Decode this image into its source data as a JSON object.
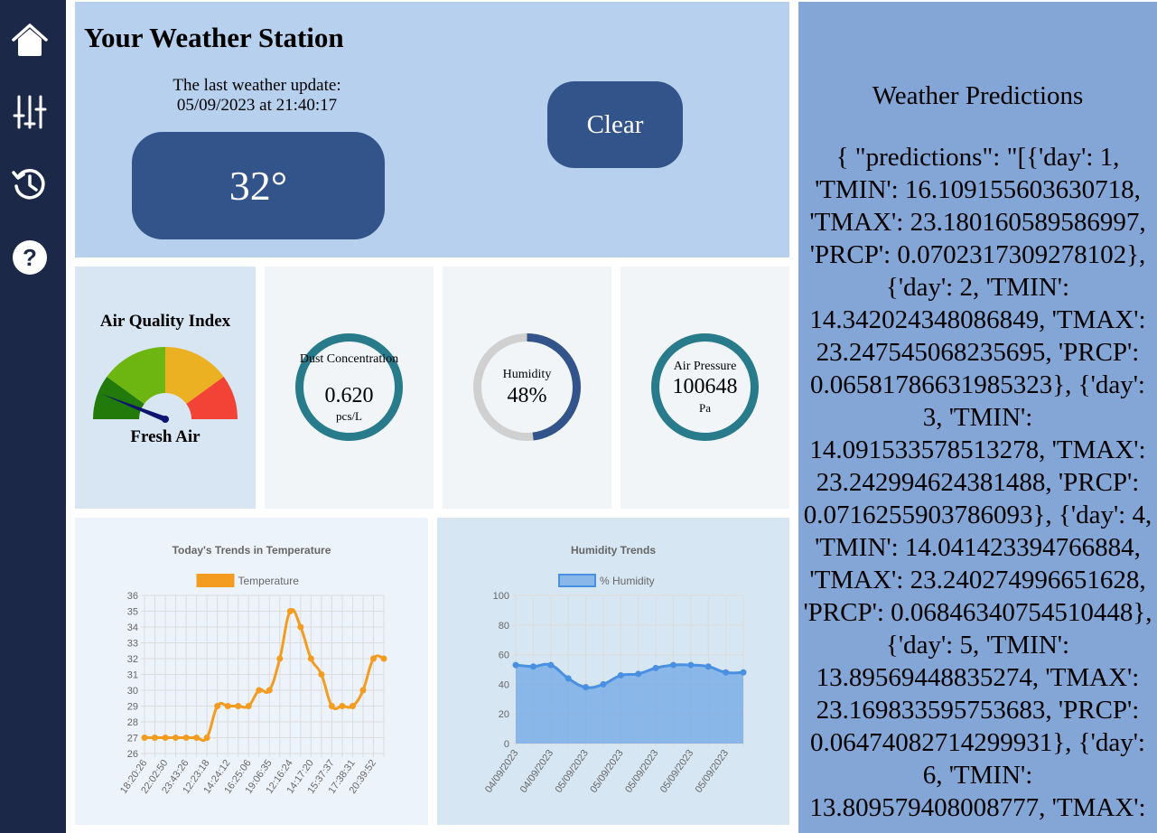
{
  "sidebar": {
    "items": [
      {
        "icon": "home-icon"
      },
      {
        "icon": "sliders-icon"
      },
      {
        "icon": "history-icon"
      },
      {
        "icon": "help-icon"
      }
    ]
  },
  "header": {
    "title": "Your Weather Station",
    "update_label": "The last weather update:",
    "update_time": "05/09/2023 at 21:40:17",
    "temperature": "32°",
    "clear_label": "Clear"
  },
  "aqi": {
    "title": "Air Quality Index",
    "status": "Fresh Air",
    "level_fraction": 0.12,
    "colors": [
      "#217a0a",
      "#6db511",
      "#ebb123",
      "#f34336"
    ]
  },
  "dust": {
    "label": "Dust Concentration",
    "value": "0.620",
    "unit": "pcs/L"
  },
  "humidity": {
    "label": "Humidity",
    "value": "48%",
    "fraction": 0.48
  },
  "pressure": {
    "label": "Air Pressure",
    "value": "100648",
    "unit": "Pa"
  },
  "colors": {
    "sidebar": "#1b2848",
    "button": "#32548a",
    "ring": "#277b8b",
    "temp_line": "#f39c1f",
    "humidity_line": "#4a90e2"
  },
  "predictions": {
    "title": "Weather Predictions",
    "text": "{ \"predictions\": \"[{'day': 1, 'TMIN': 16.109155603630718, 'TMAX': 23.180160589586997, 'PRCP': 0.0702317309278102}, {'day': 2, 'TMIN': 14.342024348086849, 'TMAX': 23.247545068235695, 'PRCP': 0.06581786631985323}, {'day': 3, 'TMIN': 14.091533578513278, 'TMAX': 23.242994624381488, 'PRCP': 0.0716255903786093}, {'day': 4, 'TMIN': 14.041423394766884, 'TMAX': 23.240274996651628, 'PRCP': 0.06846340754510448}, {'day': 5, 'TMIN': 13.89569448835274, 'TMAX': 23.169833595753683, 'PRCP': 0.06474082714299931}, {'day': 6, 'TMIN': 13.809579408008777, 'TMAX':"
  },
  "chart_data": [
    {
      "type": "line",
      "title": "Today's Trends in Temperature",
      "legend": "top",
      "grid": true,
      "ylim": [
        26,
        36
      ],
      "x_tick_labels": [
        "18:20:26",
        "22:02:50",
        "23:43:26",
        "12:23:18",
        "14:24:12",
        "16:25:06",
        "19:06:35",
        "12:16:24",
        "14:17:20",
        "15:37:37",
        "17:38:31",
        "20:39:52"
      ],
      "series": [
        {
          "name": "Temperature",
          "values": [
            27,
            27,
            27,
            27,
            27,
            27,
            27,
            29,
            29,
            29,
            29,
            30,
            30,
            32,
            35,
            34,
            32,
            31,
            29,
            29,
            29,
            30,
            32,
            32
          ]
        }
      ]
    },
    {
      "type": "area",
      "title": "Humidity Trends",
      "legend": "top",
      "grid": true,
      "ylim": [
        0,
        100
      ],
      "x_tick_labels": [
        "04/09/2023",
        "04/09/2023",
        "05/09/2023",
        "05/09/2023",
        "05/09/2023",
        "05/09/2023",
        "05/09/2023"
      ],
      "series": [
        {
          "name": "% Humidity",
          "values": [
            53,
            52,
            53,
            44,
            38,
            40,
            46,
            47,
            51,
            53,
            53,
            52,
            48,
            48
          ]
        }
      ]
    }
  ]
}
